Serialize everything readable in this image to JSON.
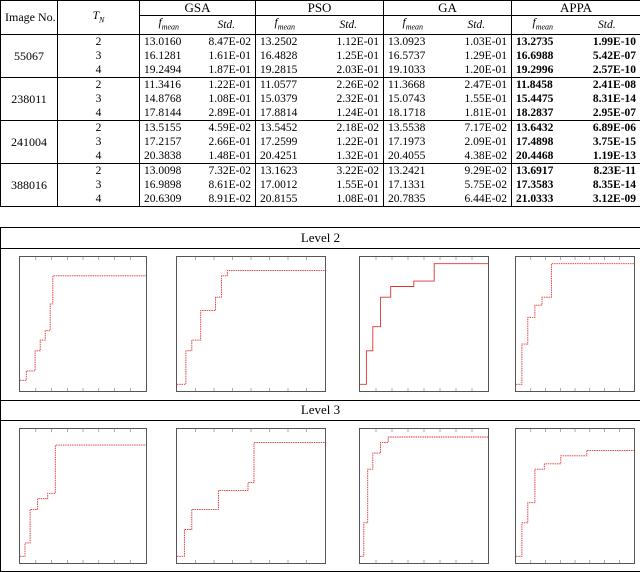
{
  "table": {
    "header": {
      "image_no": "Image No.",
      "tn": "TN",
      "algorithms": [
        "GSA",
        "PSO",
        "GA",
        "APPA"
      ],
      "fmean": "fmean",
      "std": "Std."
    },
    "groups": [
      {
        "image": "55067",
        "rows": [
          {
            "tn": "2",
            "vals": [
              "13.0160",
              "8.47E-02",
              "13.2502",
              "1.12E-01",
              "13.0923",
              "1.03E-01",
              "13.2735",
              "1.99E-10"
            ]
          },
          {
            "tn": "3",
            "vals": [
              "16.1281",
              "1.61E-01",
              "16.4828",
              "1.25E-01",
              "16.5737",
              "1.29E-01",
              "16.6988",
              "5.42E-07"
            ]
          },
          {
            "tn": "4",
            "vals": [
              "19.2494",
              "1.87E-01",
              "19.2815",
              "2.03E-01",
              "19.1033",
              "1.20E-01",
              "19.2996",
              "2.57E-10"
            ]
          }
        ]
      },
      {
        "image": "238011",
        "rows": [
          {
            "tn": "2",
            "vals": [
              "11.3416",
              "1.22E-01",
              "11.0577",
              "2.26E-02",
              "11.3668",
              "2.47E-01",
              "11.8458",
              "2.41E-08"
            ]
          },
          {
            "tn": "3",
            "vals": [
              "14.8768",
              "1.08E-01",
              "15.0379",
              "2.32E-01",
              "15.0743",
              "1.55E-01",
              "15.4475",
              "8.31E-14"
            ]
          },
          {
            "tn": "4",
            "vals": [
              "17.8144",
              "2.89E-01",
              "17.8814",
              "1.24E-01",
              "18.1718",
              "1.81E-01",
              "18.2837",
              "2.95E-07"
            ]
          }
        ]
      },
      {
        "image": "241004",
        "rows": [
          {
            "tn": "2",
            "vals": [
              "13.5155",
              "4.59E-02",
              "13.5452",
              "2.18E-02",
              "13.5538",
              "7.17E-02",
              "13.6432",
              "6.89E-06"
            ]
          },
          {
            "tn": "3",
            "vals": [
              "17.2157",
              "2.66E-01",
              "17.2599",
              "1.22E-01",
              "17.1973",
              "2.09E-01",
              "17.4898",
              "3.75E-15"
            ]
          },
          {
            "tn": "4",
            "vals": [
              "20.3838",
              "1.48E-01",
              "20.4251",
              "1.32E-01",
              "20.4055",
              "4.38E-02",
              "20.4468",
              "1.19E-13"
            ]
          }
        ]
      },
      {
        "image": "388016",
        "rows": [
          {
            "tn": "2",
            "vals": [
              "13.0098",
              "7.32E-02",
              "13.1623",
              "3.22E-02",
              "13.2421",
              "9.29E-02",
              "13.6917",
              "8.23E-11"
            ]
          },
          {
            "tn": "3",
            "vals": [
              "16.9898",
              "8.61E-02",
              "17.0012",
              "1.55E-01",
              "17.1331",
              "5.75E-02",
              "17.3583",
              "8.35E-14"
            ]
          },
          {
            "tn": "4",
            "vals": [
              "20.6309",
              "8.91E-02",
              "20.8155",
              "1.08E-01",
              "20.7835",
              "6.44E-02",
              "21.0333",
              "3.12E-09"
            ]
          }
        ]
      }
    ]
  },
  "figure": {
    "levels": [
      "Level 2",
      "Level 3"
    ],
    "line_color": "#e23030"
  }
}
